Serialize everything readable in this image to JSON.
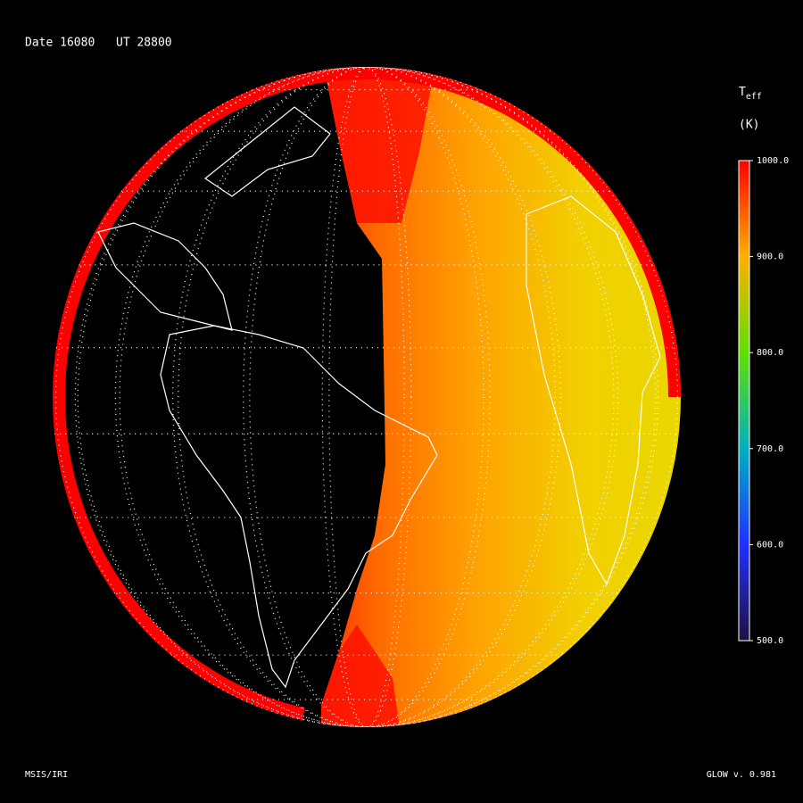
{
  "header": {
    "date": "Date 16080",
    "ut": "UT 28800"
  },
  "colorbar": {
    "title": "T",
    "title_sub": "eff",
    "unit": "(K)",
    "range": [
      500,
      1000
    ],
    "ticks": [
      {
        "value": 1000,
        "label": "1000.0"
      },
      {
        "value": 900,
        "label": "900.0"
      },
      {
        "value": 800,
        "label": "800.0"
      },
      {
        "value": 700,
        "label": "700.0"
      },
      {
        "value": 600,
        "label": "600.0"
      },
      {
        "value": 500,
        "label": "500.0"
      }
    ]
  },
  "footer": {
    "left": "MSIS/IRI",
    "right": "GLOW v. 0.981"
  }
}
